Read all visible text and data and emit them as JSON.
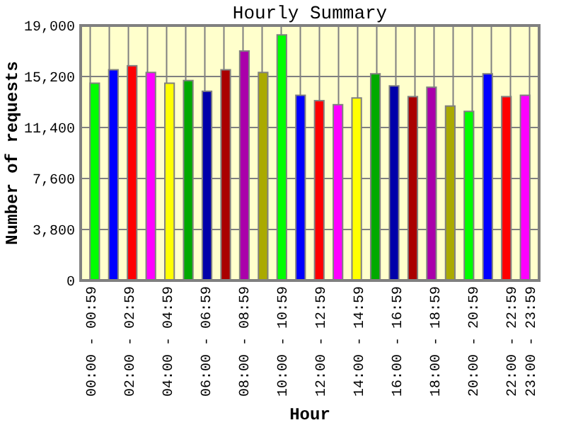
{
  "chart_data": {
    "type": "bar",
    "title": "Hourly Summary",
    "xlabel": "Hour",
    "ylabel": "Number of requests",
    "categories": [
      "00:00 - 00:59",
      null,
      "02:00 - 02:59",
      null,
      "04:00 - 04:59",
      null,
      "06:00 - 06:59",
      null,
      "08:00 - 08:59",
      null,
      "10:00 - 10:59",
      null,
      "12:00 - 12:59",
      null,
      "14:00 - 14:59",
      null,
      "16:00 - 16:59",
      null,
      "18:00 - 18:59",
      null,
      "20:00 - 20:59",
      null,
      "22:00 - 22:59",
      "23:00 - 23:59"
    ],
    "values": [
      14700,
      15700,
      16000,
      15500,
      14700,
      14900,
      14100,
      15700,
      17100,
      15500,
      18300,
      13800,
      13400,
      13100,
      13600,
      15400,
      14500,
      13700,
      14400,
      13000,
      12600,
      15400,
      13700,
      13800
    ],
    "colors": [
      "#00ff00",
      "#0000ff",
      "#ff0000",
      "#ff00ff",
      "#ffff00",
      "#00aa00",
      "#0000aa",
      "#aa0000",
      "#aa00aa",
      "#aaaa00",
      "#00ff00",
      "#0000ff",
      "#ff0000",
      "#ff00ff",
      "#ffff00",
      "#00aa00",
      "#0000aa",
      "#aa0000",
      "#aa00aa",
      "#aaaa00",
      "#00ff00",
      "#0000ff",
      "#ff0000",
      "#ff00ff"
    ],
    "ylim": [
      0,
      19000
    ],
    "yticks": [
      0,
      {
        "value": 3800,
        "label": "3,800"
      },
      {
        "value": 7600,
        "label": "7,600"
      },
      {
        "value": 11400,
        "label": "11,400"
      },
      {
        "value": 15200,
        "label": "15,200"
      },
      {
        "value": 19000,
        "label": "19,000"
      }
    ],
    "grid": true
  }
}
